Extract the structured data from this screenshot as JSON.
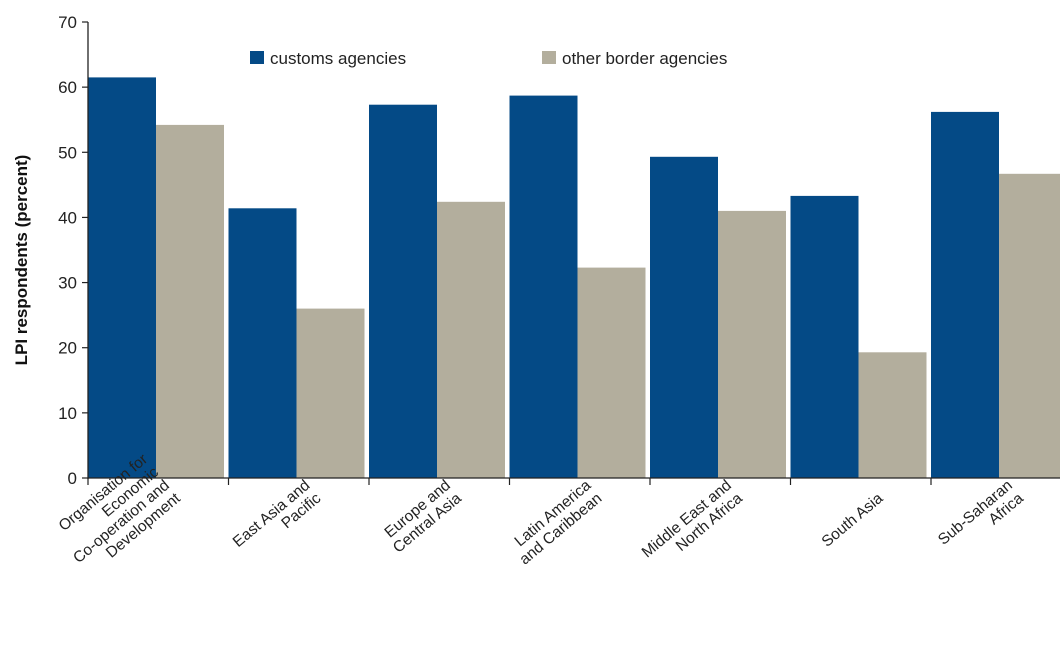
{
  "chart_data": {
    "type": "bar",
    "categories": [
      [
        "Organisation for",
        "Economic",
        "Co-operation and",
        "Development"
      ],
      [
        "East Asia and",
        "Pacific"
      ],
      [
        "Europe and",
        "Central Asia"
      ],
      [
        "Latin America",
        "and Caribbean"
      ],
      [
        "Middle East and",
        "North Africa"
      ],
      [
        "South Asia"
      ],
      [
        "Sub-Saharan",
        "Africa"
      ]
    ],
    "series": [
      {
        "name": "customs agencies",
        "color": "#044A86",
        "values": [
          61.5,
          41.4,
          57.3,
          58.7,
          49.3,
          43.3,
          56.2
        ]
      },
      {
        "name": "other border agencies",
        "color": "#B3AE9D",
        "values": [
          54.2,
          26.0,
          42.4,
          32.3,
          41.0,
          19.3,
          46.7
        ]
      }
    ],
    "title": "",
    "xlabel": "",
    "ylabel": "LPI respondents (percent)",
    "ylim": [
      0,
      70
    ],
    "yticks": [
      0,
      10,
      20,
      30,
      40,
      50,
      60,
      70
    ],
    "grid": false,
    "legend_position": "top"
  }
}
